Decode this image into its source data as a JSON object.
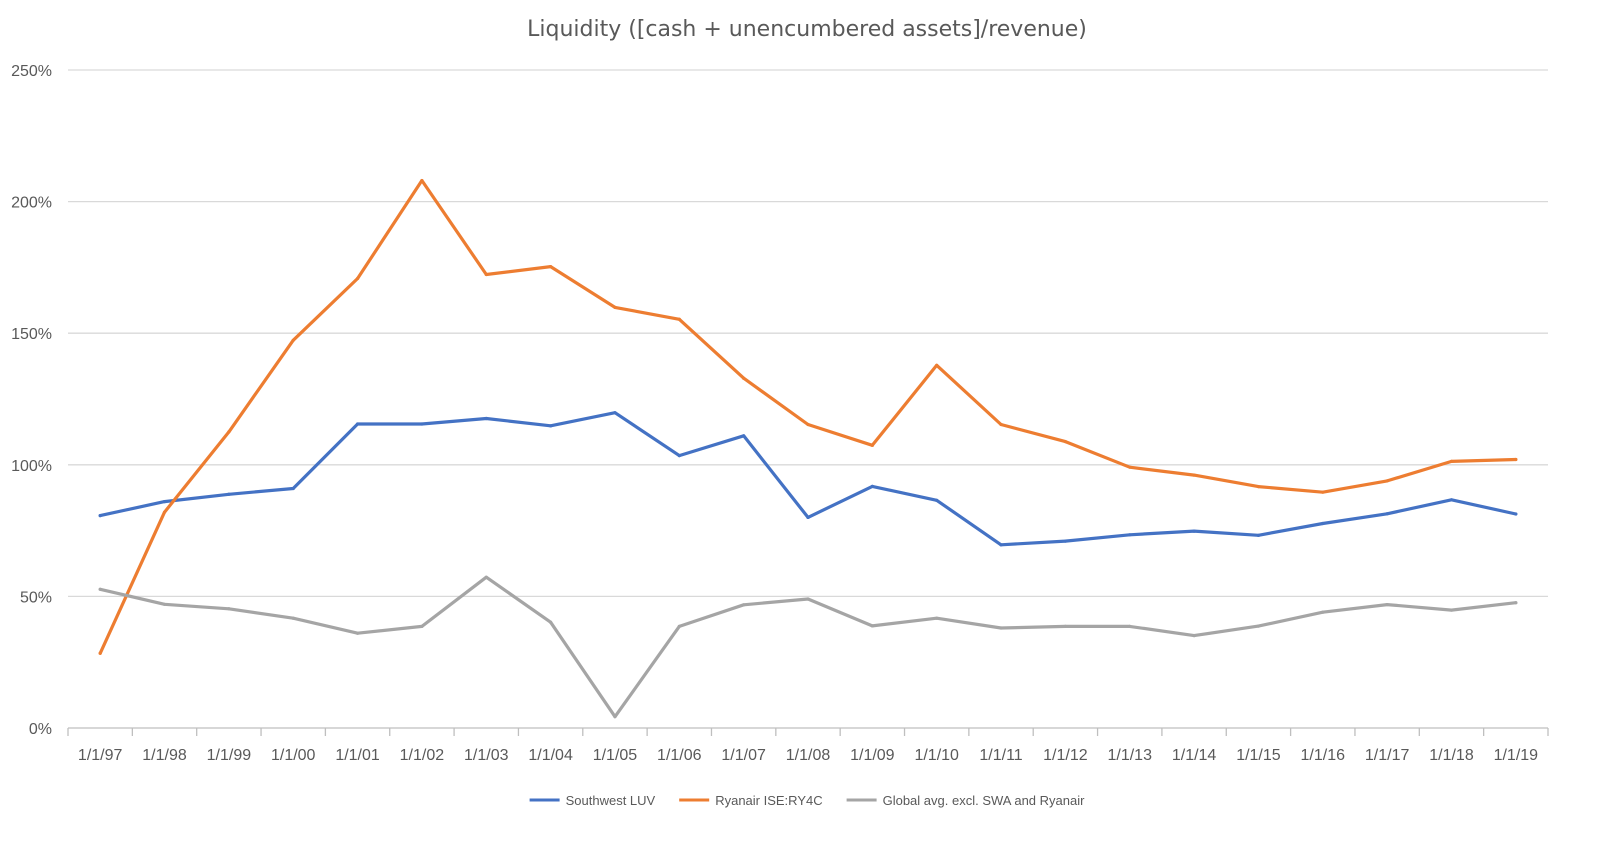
{
  "chart_data": {
    "type": "line",
    "title": "Liquidity ([cash + unencumbered assets]/revenue)",
    "xlabel": "",
    "ylabel": "",
    "categories": [
      "1/1/97",
      "1/1/98",
      "1/1/99",
      "1/1/00",
      "1/1/01",
      "1/1/02",
      "1/1/03",
      "1/1/04",
      "1/1/05",
      "1/1/06",
      "1/1/07",
      "1/1/08",
      "1/1/09",
      "1/1/10",
      "1/1/11",
      "1/1/12",
      "1/1/13",
      "1/1/14",
      "1/1/15",
      "1/1/16",
      "1/1/17",
      "1/1/18",
      "1/1/19"
    ],
    "ylim": [
      0,
      250
    ],
    "yticks": [
      0,
      50,
      100,
      150,
      200,
      250
    ],
    "ytick_labels": [
      "0%",
      "50%",
      "100%",
      "150%",
      "200%",
      "250%"
    ],
    "grid": true,
    "legend_position": "bottom",
    "series": [
      {
        "name": "Southwest LUV",
        "color": "#4472c4",
        "values": [
          80.7,
          86,
          88.8,
          91,
          115.5,
          115.5,
          117.6,
          114.8,
          119.8,
          103.5,
          111,
          80,
          91.8,
          86.5,
          69.6,
          71,
          73.4,
          74.8,
          73.2,
          77.7,
          81.4,
          86.7,
          81.3
        ]
      },
      {
        "name": "Ryanair ISE:RY4C",
        "color": "#ed7d31",
        "values": [
          28.4,
          82,
          112.5,
          147.3,
          170.8,
          208,
          172.3,
          175.3,
          159.8,
          155.3,
          132.9,
          115.3,
          107.4,
          137.8,
          115.3,
          108.8,
          99.1,
          96.1,
          91.7,
          89.6,
          93.9,
          101.3,
          102
        ]
      },
      {
        "name": "Global avg. excl. SWA and Ryanair",
        "color": "#a5a5a5",
        "values": [
          52.7,
          47,
          45.3,
          41.7,
          36,
          38.6,
          57.3,
          40.2,
          4.3,
          38.6,
          46.8,
          49,
          38.8,
          41.7,
          38,
          38.6,
          38.6,
          35.1,
          38.7,
          44,
          46.9,
          44.8,
          47.6
        ]
      }
    ]
  }
}
